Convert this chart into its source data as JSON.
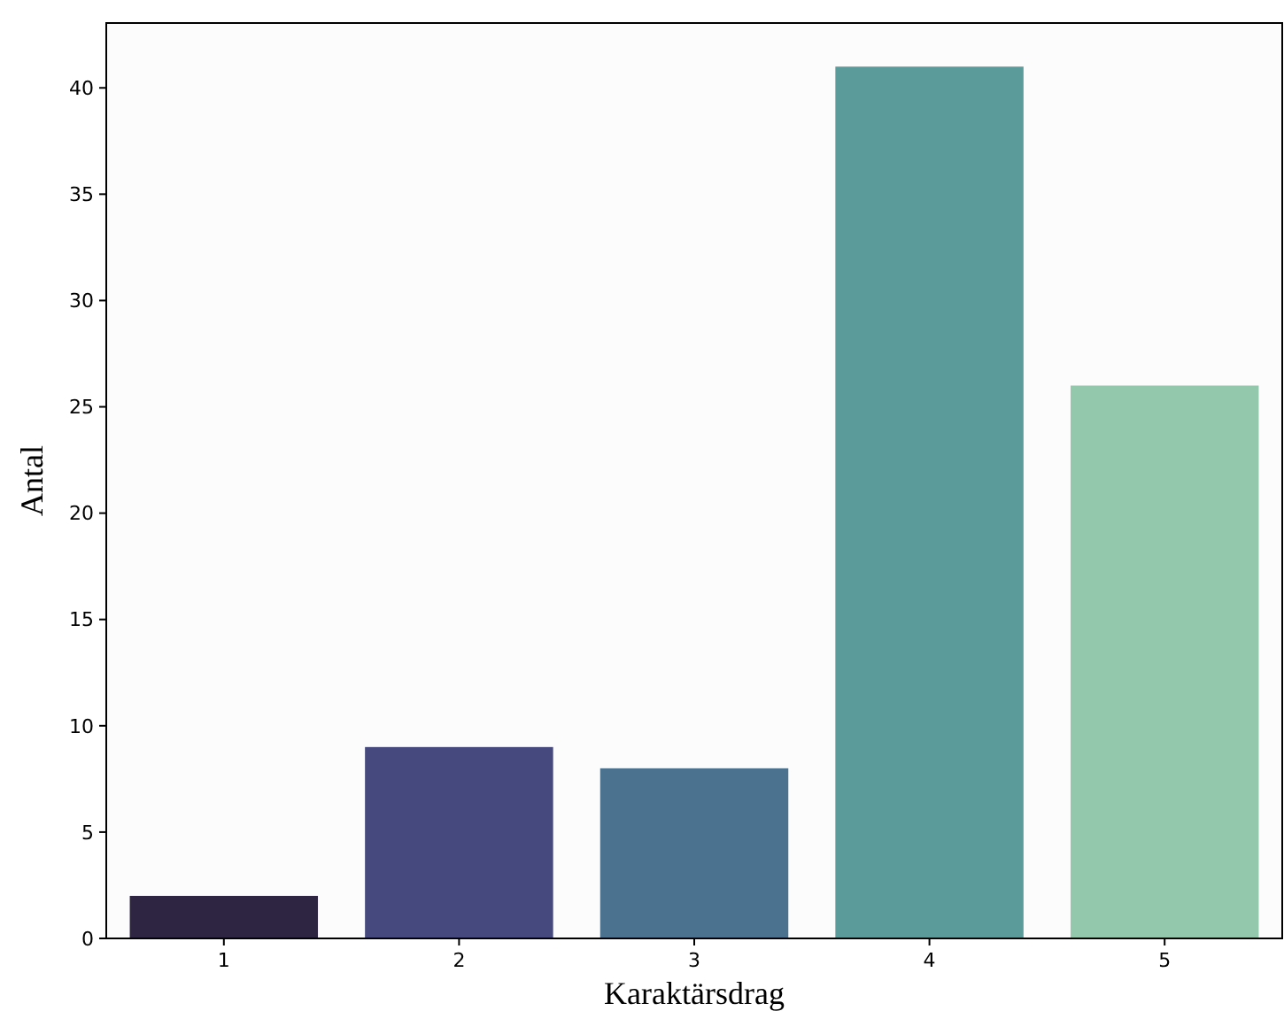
{
  "chart_data": {
    "type": "bar",
    "xlabel": "Karaktärsdrag",
    "ylabel": "Antal",
    "categories": [
      "1",
      "2",
      "3",
      "4",
      "5"
    ],
    "values": [
      2,
      9,
      8,
      41,
      26
    ],
    "colors": [
      "#2e2542",
      "#46497d",
      "#4b7390",
      "#5b9b9a",
      "#93c8ad"
    ],
    "ylim": [
      0,
      43.05
    ],
    "yticks": [
      0,
      5,
      10,
      15,
      20,
      25,
      30,
      35,
      40
    ]
  }
}
